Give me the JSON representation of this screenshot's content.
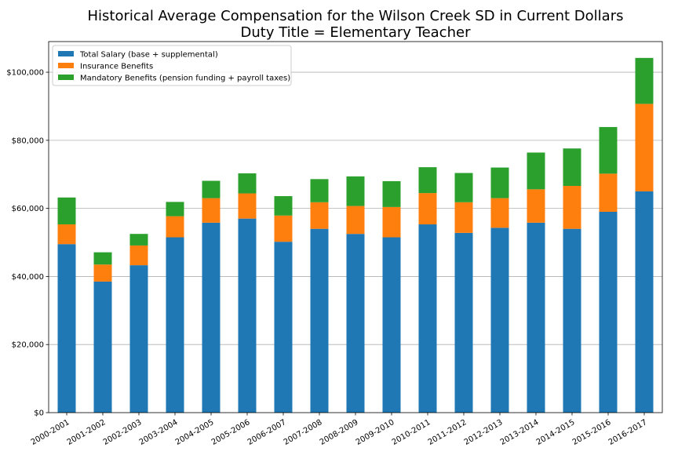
{
  "chart_data": {
    "type": "bar",
    "stacked": true,
    "title": "Historical Average Compensation for the Wilson Creek SD in Current Dollars",
    "subtitle": "Duty Title = Elementary Teacher",
    "xlabel": "",
    "ylabel": "",
    "ylim": [
      0,
      109000
    ],
    "yticks": [
      0,
      20000,
      40000,
      60000,
      80000,
      100000
    ],
    "ytick_labels": [
      "$0",
      "$20,000",
      "$40,000",
      "$60,000",
      "$80,000",
      "$100,000"
    ],
    "grid": "horizontal",
    "legend_position": "top-left",
    "categories": [
      "2000-2001",
      "2001-2002",
      "2002-2003",
      "2003-2004",
      "2004-2005",
      "2005-2006",
      "2006-2007",
      "2007-2008",
      "2008-2009",
      "2009-2010",
      "2010-2011",
      "2011-2012",
      "2012-2013",
      "2013-2014",
      "2014-2015",
      "2015-2016",
      "2016-2017"
    ],
    "series": [
      {
        "name": "Total Salary (base + supplemental)",
        "color": "#1f77b4",
        "values": [
          49500,
          38500,
          43300,
          51500,
          55800,
          57000,
          50200,
          54000,
          52500,
          51500,
          55300,
          52800,
          54300,
          55800,
          54000,
          59000,
          65000
        ]
      },
      {
        "name": "Insurance Benefits",
        "color": "#ff7f0e",
        "values": [
          5800,
          5000,
          5800,
          6200,
          7200,
          7400,
          7700,
          7800,
          8200,
          8900,
          9200,
          9000,
          8700,
          9800,
          12600,
          11200,
          25700
        ]
      },
      {
        "name": "Mandatory Benefits (pension funding + payroll taxes)",
        "color": "#2ca02c",
        "values": [
          7900,
          3600,
          3400,
          4200,
          5100,
          5900,
          5700,
          6800,
          8700,
          7600,
          7600,
          8600,
          9000,
          10800,
          11000,
          13700,
          13500
        ]
      }
    ]
  }
}
